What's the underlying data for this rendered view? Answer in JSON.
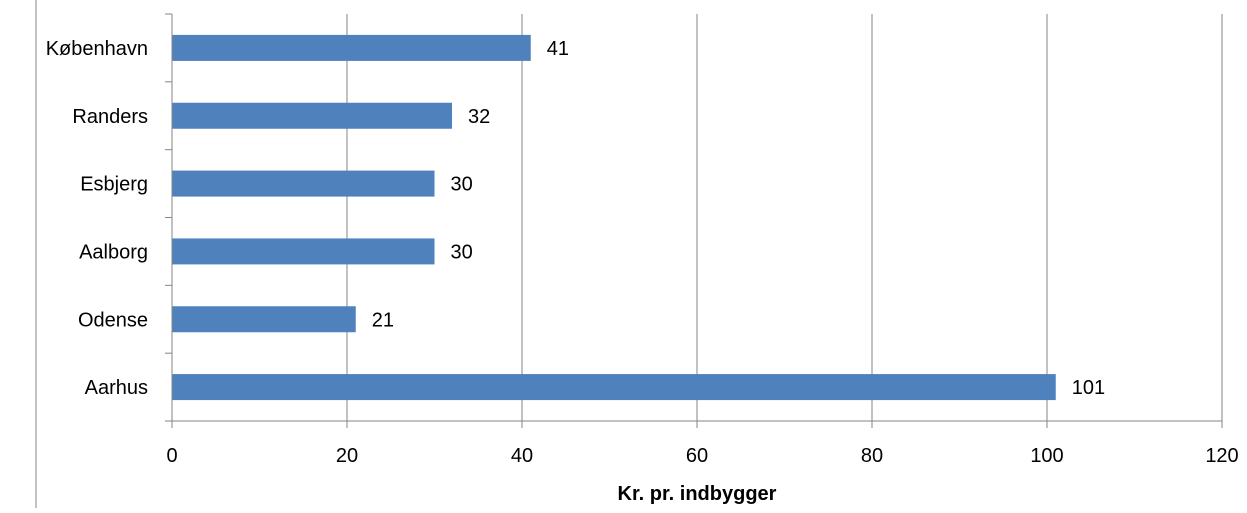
{
  "chart_data": {
    "type": "bar",
    "orientation": "horizontal",
    "categories": [
      "København",
      "Randers",
      "Esbjerg",
      "Aalborg",
      "Odense",
      "Aarhus"
    ],
    "values": [
      41,
      32,
      30,
      30,
      21,
      101
    ],
    "data_labels": [
      "41",
      "32",
      "30",
      "30",
      "21",
      "101"
    ],
    "title": "",
    "xlabel": "Kr. pr. indbygger",
    "ylabel": "",
    "xlim": [
      0,
      120
    ],
    "x_ticks": [
      0,
      20,
      40,
      60,
      80,
      100,
      120
    ],
    "x_tick_labels": [
      "0",
      "20",
      "40",
      "60",
      "80",
      "100",
      "120"
    ],
    "grid": "vertical major gridlines",
    "legend": "none",
    "bar_color": "#4F81BD",
    "gridline_color": "#868686"
  }
}
